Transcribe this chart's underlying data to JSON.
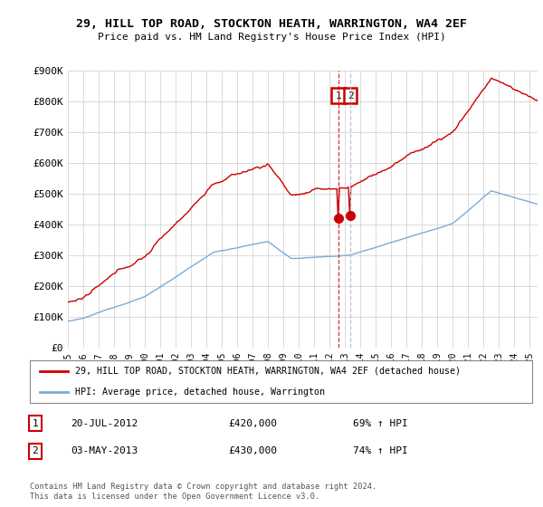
{
  "title": "29, HILL TOP ROAD, STOCKTON HEATH, WARRINGTON, WA4 2EF",
  "subtitle": "Price paid vs. HM Land Registry's House Price Index (HPI)",
  "legend_label_red": "29, HILL TOP ROAD, STOCKTON HEATH, WARRINGTON, WA4 2EF (detached house)",
  "legend_label_blue": "HPI: Average price, detached house, Warrington",
  "annotation1_date": "20-JUL-2012",
  "annotation1_price": "£420,000",
  "annotation1_hpi": "69% ↑ HPI",
  "annotation2_date": "03-MAY-2013",
  "annotation2_price": "£430,000",
  "annotation2_hpi": "74% ↑ HPI",
  "footer": "Contains HM Land Registry data © Crown copyright and database right 2024.\nThis data is licensed under the Open Government Licence v3.0.",
  "ylim": [
    0,
    900000
  ],
  "yticks": [
    0,
    100000,
    200000,
    300000,
    400000,
    500000,
    600000,
    700000,
    800000,
    900000
  ],
  "ytick_labels": [
    "£0",
    "£100K",
    "£200K",
    "£300K",
    "£400K",
    "£500K",
    "£600K",
    "£700K",
    "£800K",
    "£900K"
  ],
  "red_color": "#cc0000",
  "blue_color": "#7aabdb",
  "vline1_color": "#cc0000",
  "vline2_color": "#aabbcc",
  "background_color": "#ffffff",
  "grid_color": "#cccccc",
  "sale1_year": 2012.55,
  "sale2_year": 2013.34,
  "sale1_price": 420000,
  "sale2_price": 430000
}
